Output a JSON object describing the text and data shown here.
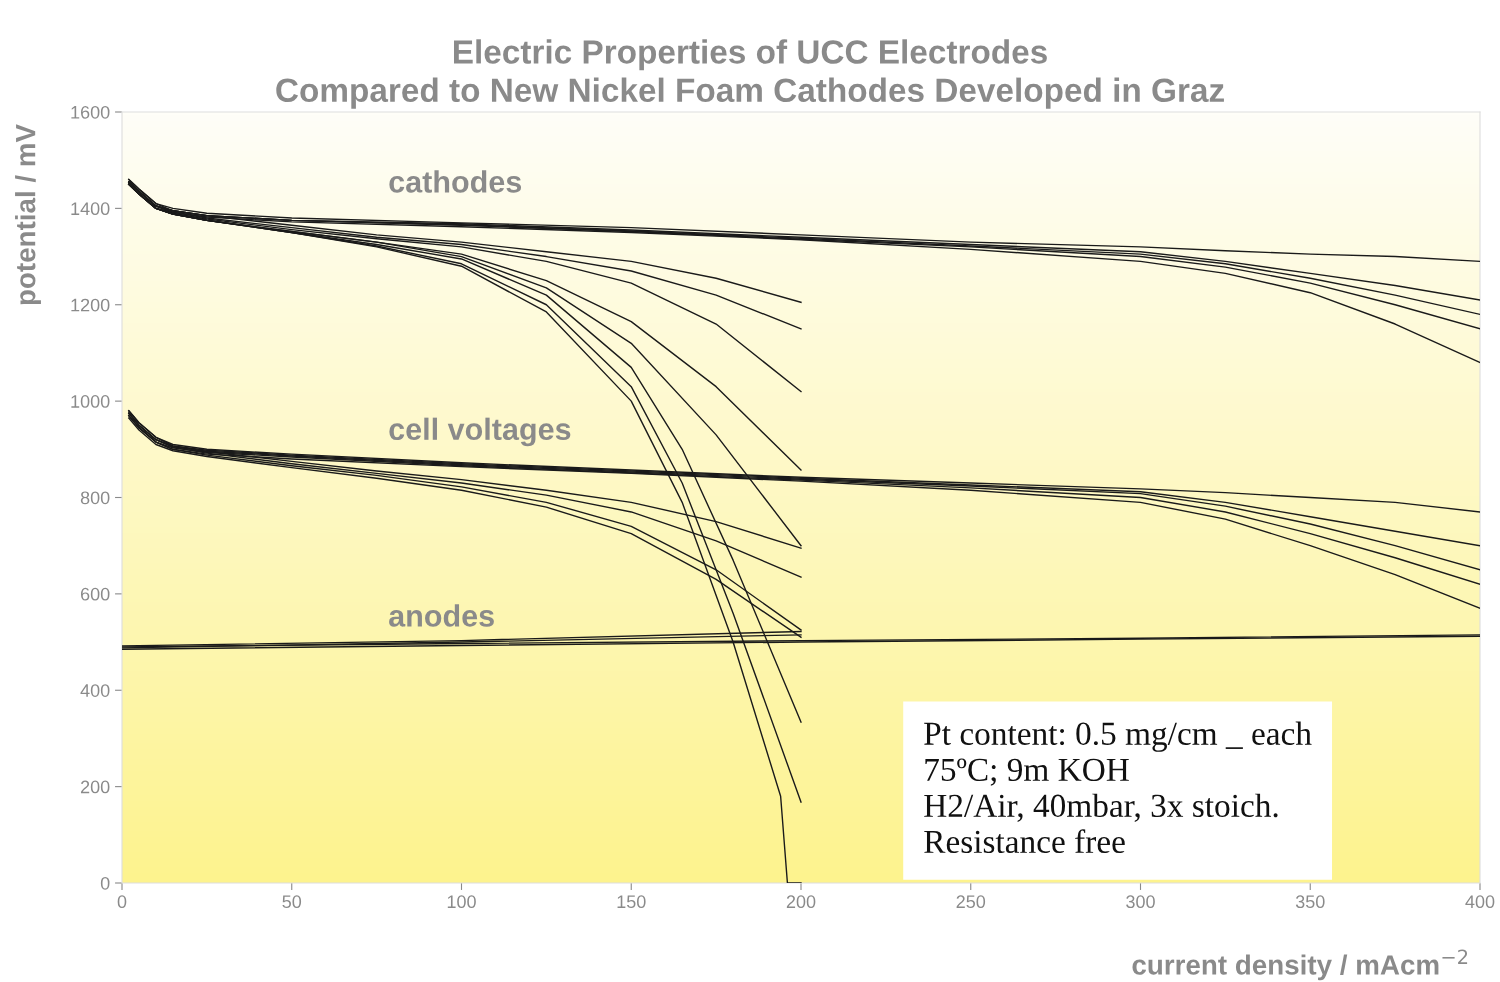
{
  "chart_data": {
    "type": "line",
    "title": "Electric Properties of UCC Electrodes\nCompared to New Nickel Foam Cathodes Developed in Graz",
    "xlabel": "current density / mAcm$^{−2}$",
    "ylabel": "potential / mV",
    "xlim": [
      0,
      400
    ],
    "ylim": [
      0,
      1600
    ],
    "xticks": [
      0,
      50,
      100,
      150,
      200,
      250,
      300,
      350,
      400
    ],
    "yticks": [
      0,
      200,
      400,
      600,
      800,
      1000,
      1200,
      1400,
      1600
    ],
    "grid": false,
    "legend": false,
    "annotations": [
      "cathodes",
      "cell voltages",
      "anodes",
      "Pt content: 0.5 mg/cm _ each\n75ºC; 9m KOH\nH2/Air, 40mbar, 3x stoich.\nResistance free"
    ],
    "series": [
      {
        "color": "#1a1a1a",
        "x": [
          2,
          5,
          10,
          15,
          25,
          50,
          100,
          150,
          200,
          250,
          300,
          325,
          350,
          375,
          400
        ],
        "values": [
          1460,
          1440,
          1410,
          1400,
          1390,
          1380,
          1370,
          1360,
          1345,
          1330,
          1320,
          1312,
          1305,
          1300,
          1290
        ]
      },
      {
        "color": "#1a1a1a",
        "x": [
          2,
          5,
          10,
          15,
          25,
          50,
          100,
          150,
          200,
          250,
          300,
          325,
          350,
          375,
          400
        ],
        "values": [
          1455,
          1435,
          1405,
          1395,
          1385,
          1375,
          1368,
          1355,
          1340,
          1325,
          1310,
          1290,
          1265,
          1240,
          1210
        ]
      },
      {
        "color": "#1a1a1a",
        "x": [
          2,
          5,
          10,
          15,
          25,
          50,
          100,
          150,
          200,
          250,
          300,
          325,
          350,
          375,
          400
        ],
        "values": [
          1455,
          1435,
          1405,
          1395,
          1385,
          1375,
          1366,
          1353,
          1338,
          1322,
          1305,
          1285,
          1255,
          1220,
          1180
        ]
      },
      {
        "color": "#1a1a1a",
        "x": [
          2,
          5,
          10,
          15,
          25,
          50,
          100,
          150,
          200,
          250,
          300,
          325,
          350,
          375,
          400
        ],
        "values": [
          1455,
          1435,
          1405,
          1395,
          1385,
          1375,
          1365,
          1352,
          1336,
          1320,
          1300,
          1278,
          1245,
          1200,
          1150
        ]
      },
      {
        "color": "#1a1a1a",
        "x": [
          2,
          5,
          10,
          15,
          25,
          50,
          100,
          150,
          200,
          250,
          300,
          325,
          350,
          375,
          400
        ],
        "values": [
          1450,
          1430,
          1400,
          1392,
          1382,
          1372,
          1362,
          1350,
          1335,
          1315,
          1290,
          1265,
          1225,
          1160,
          1080
        ]
      },
      {
        "color": "#1a1a1a",
        "x": [
          2,
          5,
          10,
          15,
          25,
          50,
          75,
          100,
          125,
          150,
          175,
          200
        ],
        "values": [
          1460,
          1440,
          1410,
          1395,
          1385,
          1365,
          1345,
          1330,
          1310,
          1290,
          1255,
          1205
        ]
      },
      {
        "color": "#1a1a1a",
        "x": [
          2,
          5,
          10,
          15,
          25,
          50,
          75,
          100,
          125,
          150,
          175,
          200
        ],
        "values": [
          1455,
          1435,
          1405,
          1392,
          1380,
          1360,
          1340,
          1325,
          1300,
          1270,
          1220,
          1150
        ]
      },
      {
        "color": "#1a1a1a",
        "x": [
          2,
          5,
          10,
          15,
          25,
          50,
          75,
          100,
          125,
          150,
          175,
          200
        ],
        "values": [
          1455,
          1435,
          1405,
          1390,
          1378,
          1356,
          1337,
          1320,
          1290,
          1245,
          1160,
          1020
        ]
      },
      {
        "color": "#1a1a1a",
        "x": [
          2,
          5,
          10,
          15,
          25,
          50,
          75,
          100,
          125,
          150,
          175,
          200
        ],
        "values": [
          1450,
          1430,
          1400,
          1388,
          1375,
          1352,
          1330,
          1305,
          1250,
          1165,
          1030,
          857
        ]
      },
      {
        "color": "#1a1a1a",
        "x": [
          2,
          5,
          10,
          15,
          25,
          50,
          75,
          100,
          125,
          150,
          175,
          200
        ],
        "values": [
          1450,
          1430,
          1400,
          1388,
          1375,
          1352,
          1330,
          1300,
          1235,
          1120,
          930,
          700
        ]
      },
      {
        "color": "#1a1a1a",
        "x": [
          2,
          5,
          10,
          15,
          25,
          50,
          75,
          100,
          125,
          150,
          165,
          180,
          200
        ],
        "values": [
          1450,
          1430,
          1400,
          1388,
          1375,
          1350,
          1325,
          1295,
          1220,
          1070,
          900,
          670,
          334
        ]
      },
      {
        "color": "#1a1a1a",
        "x": [
          2,
          5,
          10,
          15,
          25,
          50,
          75,
          100,
          125,
          150,
          165,
          180,
          200
        ],
        "values": [
          1450,
          1430,
          1400,
          1388,
          1375,
          1350,
          1322,
          1285,
          1200,
          1030,
          830,
          560,
          168
        ]
      },
      {
        "color": "#1a1a1a",
        "x": [
          2,
          5,
          10,
          15,
          25,
          50,
          75,
          100,
          125,
          150,
          165,
          180,
          194,
          196,
          200
        ],
        "values": [
          1450,
          1430,
          1400,
          1388,
          1375,
          1350,
          1320,
          1280,
          1185,
          1000,
          790,
          500,
          180,
          0,
          0
        ]
      },
      {
        "color": "#1a1a1a",
        "x": [
          2,
          5,
          10,
          15,
          25,
          50,
          100,
          150,
          200,
          250,
          300,
          325,
          350,
          375,
          400
        ],
        "values": [
          980,
          955,
          925,
          910,
          900,
          890,
          872,
          857,
          842,
          830,
          818,
          810,
          800,
          790,
          770
        ]
      },
      {
        "color": "#1a1a1a",
        "x": [
          2,
          5,
          10,
          15,
          25,
          50,
          100,
          150,
          200,
          250,
          300,
          325,
          350,
          375,
          400
        ],
        "values": [
          975,
          950,
          920,
          907,
          898,
          888,
          870,
          855,
          840,
          826,
          812,
          790,
          760,
          730,
          700
        ]
      },
      {
        "color": "#1a1a1a",
        "x": [
          2,
          5,
          10,
          15,
          25,
          50,
          100,
          150,
          200,
          250,
          300,
          325,
          350,
          375,
          400
        ],
        "values": [
          975,
          950,
          920,
          905,
          896,
          886,
          868,
          853,
          838,
          824,
          808,
          782,
          745,
          700,
          650
        ]
      },
      {
        "color": "#1a1a1a",
        "x": [
          2,
          5,
          10,
          15,
          25,
          50,
          100,
          150,
          200,
          250,
          300,
          325,
          350,
          375,
          400
        ],
        "values": [
          970,
          945,
          915,
          903,
          894,
          884,
          866,
          851,
          836,
          820,
          800,
          770,
          725,
          675,
          620
        ]
      },
      {
        "color": "#1a1a1a",
        "x": [
          2,
          5,
          10,
          15,
          25,
          50,
          100,
          150,
          200,
          250,
          300,
          325,
          350,
          375,
          400
        ],
        "values": [
          970,
          945,
          915,
          900,
          890,
          880,
          864,
          850,
          834,
          815,
          790,
          755,
          700,
          640,
          570
        ]
      },
      {
        "color": "#1a1a1a",
        "x": [
          2,
          5,
          10,
          15,
          25,
          50,
          75,
          100,
          125,
          150,
          175,
          200
        ],
        "values": [
          980,
          955,
          925,
          907,
          895,
          875,
          855,
          837,
          815,
          790,
          750,
          695
        ]
      },
      {
        "color": "#1a1a1a",
        "x": [
          2,
          5,
          10,
          15,
          25,
          50,
          75,
          100,
          125,
          150,
          175,
          200
        ],
        "values": [
          975,
          950,
          920,
          904,
          892,
          870,
          850,
          830,
          805,
          770,
          710,
          635
        ]
      },
      {
        "color": "#1a1a1a",
        "x": [
          2,
          5,
          10,
          15,
          25,
          50,
          75,
          100,
          125,
          150,
          175,
          200
        ],
        "values": [
          970,
          945,
          915,
          900,
          888,
          866,
          846,
          822,
          790,
          740,
          650,
          525
        ]
      },
      {
        "color": "#1a1a1a",
        "x": [
          2,
          5,
          10,
          15,
          25,
          50,
          75,
          100,
          125,
          150,
          175,
          200
        ],
        "values": [
          965,
          940,
          910,
          897,
          885,
          862,
          840,
          815,
          780,
          725,
          630,
          510
        ]
      },
      {
        "color": "#1a1a1a",
        "x": [
          0,
          100,
          200,
          300,
          400
        ],
        "values": [
          490,
          497,
          503,
          508,
          515
        ]
      },
      {
        "color": "#1a1a1a",
        "x": [
          0,
          100,
          200,
          300,
          400
        ],
        "values": [
          485,
          493,
          500,
          506,
          512
        ]
      },
      {
        "color": "#1a1a1a",
        "x": [
          0,
          100,
          200
        ],
        "values": [
          492,
          503,
          522
        ]
      },
      {
        "color": "#1a1a1a",
        "x": [
          0,
          100,
          200
        ],
        "values": [
          488,
          500,
          515
        ]
      }
    ]
  }
}
